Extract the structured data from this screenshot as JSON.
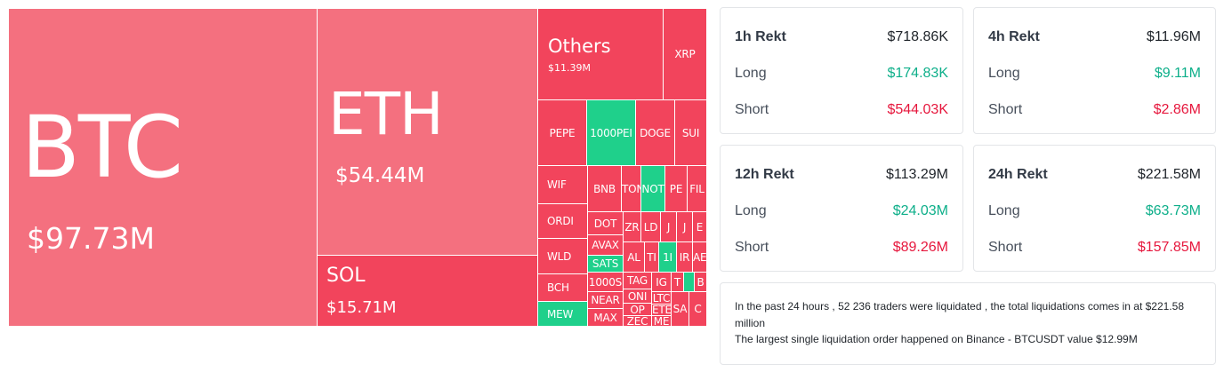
{
  "treemap": {
    "colors": {
      "loss_red": "#f2445c",
      "loss_pink": "#f4707f",
      "gain_green": "#1fd08b"
    },
    "major": {
      "btc": {
        "symbol": "BTC",
        "value": "$97.73M"
      },
      "eth": {
        "symbol": "ETH",
        "value": "$54.44M"
      },
      "sol": {
        "symbol": "SOL",
        "value": "$15.71M"
      },
      "others": {
        "symbol": "Others",
        "value": "$11.39M"
      }
    },
    "tiles": {
      "xrp": "XRP",
      "pepe": "PEPE",
      "k1000pe": "1000PEI",
      "doge": "DOGE",
      "sui": "SUI",
      "wif": "WIF",
      "bnb": "BNB",
      "tow": "TON",
      "not": "NOT",
      "pe2": "PE",
      "fil": "FIL",
      "ordi": "ORDI",
      "dot": "DOT",
      "zr": "ZR",
      "ld": "LD",
      "j": "J",
      "ex": "E",
      "avax": "AVAX",
      "wld": "WLD",
      "sats": "SATS",
      "al": "AL",
      "ti": "TI",
      "k1": "1I",
      "ir": "IR",
      "ae": "AE",
      "k1000s": "1000S",
      "bch": "BCH",
      "tag": "TAG",
      "ig": "IG",
      "t2": "T",
      "on": "ONI",
      "ltc": "LTC",
      "near": "NEAR",
      "ete": "ETE",
      "op": "OP",
      "bs": "B",
      "mew": "MEW",
      "max": "MAX",
      "zec": "ZEC",
      "me": "ME",
      "sa": "SA",
      "c": "C"
    }
  },
  "cards": [
    {
      "period": "1h Rekt",
      "total": "$718.86K",
      "long_label": "Long",
      "long": "$174.83K",
      "short_label": "Short",
      "short": "$544.03K"
    },
    {
      "period": "4h Rekt",
      "total": "$11.96M",
      "long_label": "Long",
      "long": "$9.11M",
      "short_label": "Short",
      "short": "$2.86M"
    },
    {
      "period": "12h Rekt",
      "total": "$113.29M",
      "long_label": "Long",
      "long": "$24.03M",
      "short_label": "Short",
      "short": "$89.26M"
    },
    {
      "period": "24h Rekt",
      "total": "$221.58M",
      "long_label": "Long",
      "long": "$63.73M",
      "short_label": "Short",
      "short": "$157.85M"
    }
  ],
  "summary": {
    "line1": "In the past 24 hours , 52 236 traders were liquidated , the total liquidations comes in at $221.58 million",
    "line2": "The largest single liquidation order happened on Binance - BTCUSDT value $12.99M"
  }
}
